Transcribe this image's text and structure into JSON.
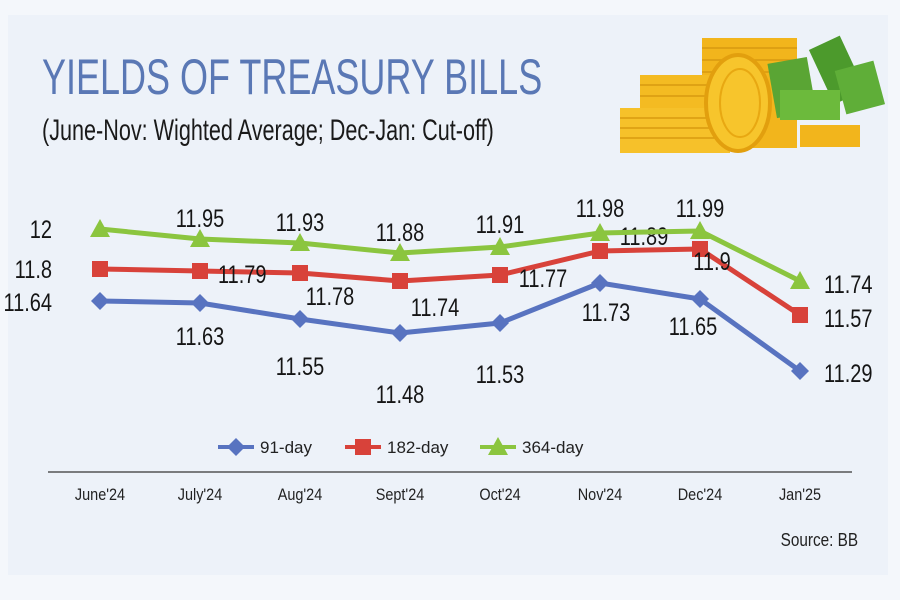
{
  "chart_data": {
    "type": "line",
    "title": "YIELDS OF TREASURY BILLS",
    "subtitle": "(June-Nov: Wighted Average; Dec-Jan: Cut-off)",
    "categories": [
      "June'24",
      "July'24",
      "Aug'24",
      "Sept'24",
      "Oct'24",
      "Nov'24",
      "Dec'24",
      "Jan'25"
    ],
    "series": [
      {
        "name": "91-day",
        "color": "#5873c0",
        "marker": "diamond",
        "values": [
          11.64,
          11.63,
          11.55,
          11.48,
          11.53,
          11.73,
          11.65,
          11.29
        ],
        "labels": [
          "11.64",
          "11.63",
          "11.55",
          "11.48",
          "11.53",
          "11.73",
          "11.65",
          "11.29"
        ]
      },
      {
        "name": "182-day",
        "color": "#d8423a",
        "marker": "square",
        "values": [
          11.8,
          11.79,
          11.78,
          11.74,
          11.77,
          11.89,
          11.9,
          11.57
        ],
        "labels": [
          "11.8",
          "11.79",
          "11.78",
          "11.74",
          "11.77",
          "11.89",
          "11.9",
          "11.57"
        ]
      },
      {
        "name": "364-day",
        "color": "#8bc53f",
        "marker": "triangle",
        "values": [
          12,
          11.95,
          11.93,
          11.88,
          11.91,
          11.98,
          11.99,
          11.74
        ],
        "labels": [
          "12",
          "11.95",
          "11.93",
          "11.88",
          "11.91",
          "11.98",
          "11.99",
          "11.74"
        ]
      }
    ],
    "legend": "bottom",
    "grid": false,
    "source": "Source: BB"
  }
}
